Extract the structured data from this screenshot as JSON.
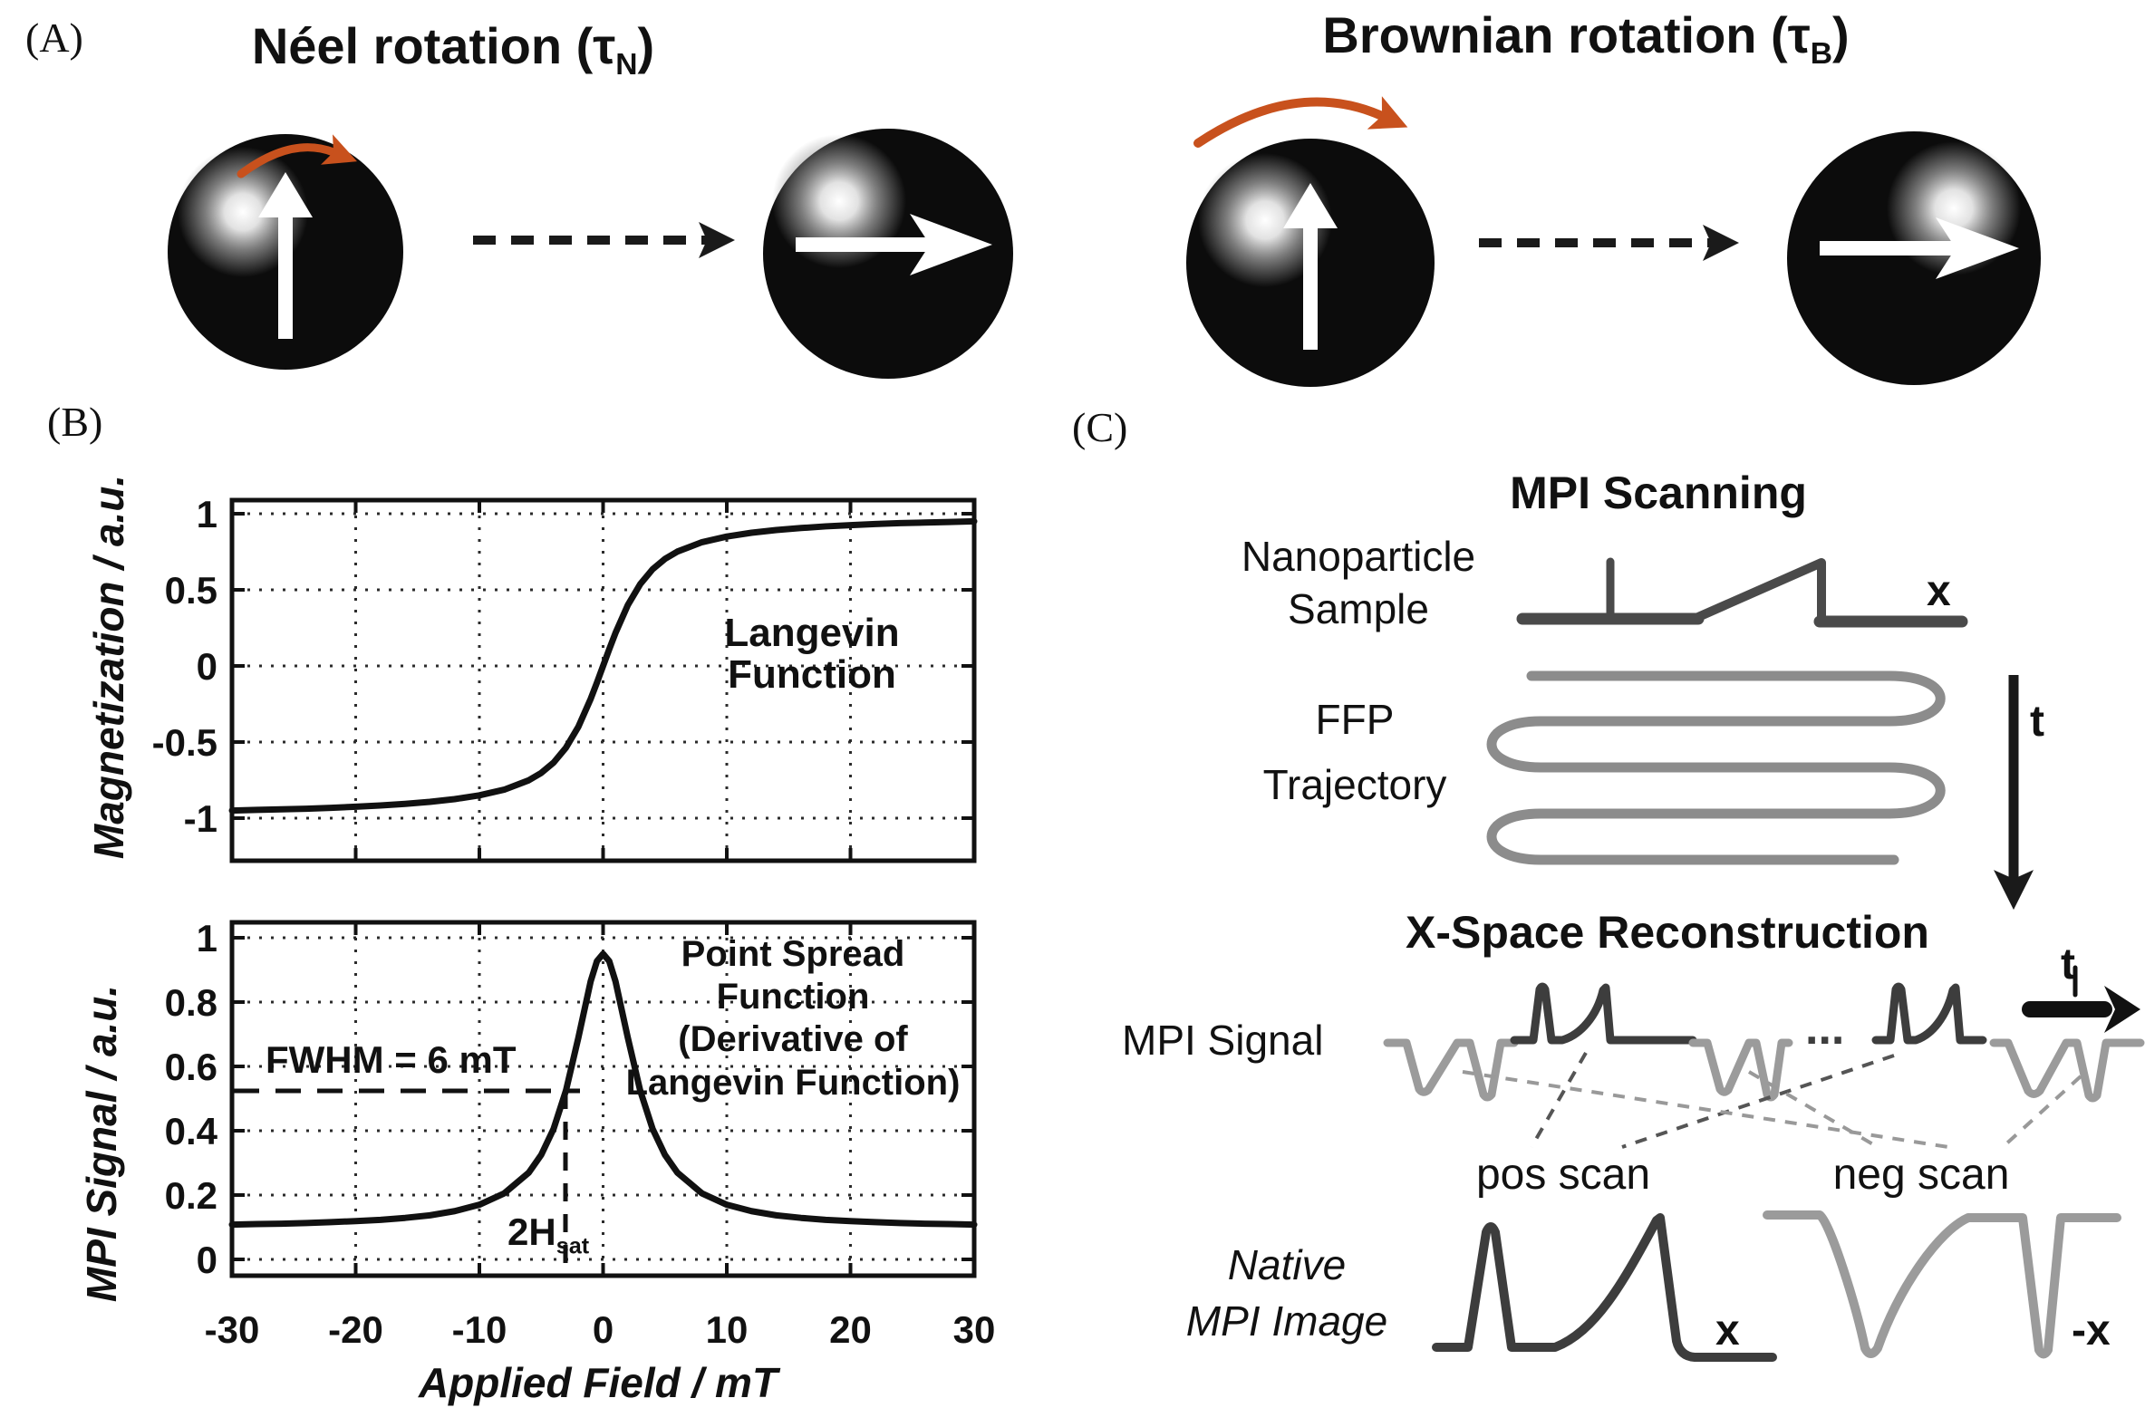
{
  "panel_a": {
    "label": "(A)",
    "neel": {
      "title_prefix": "Néel rotation (τ",
      "title_sub": "N",
      "title_suffix": ")"
    },
    "brownian": {
      "title_prefix": "Brownian rotation (τ",
      "title_sub": "B",
      "title_suffix": ")"
    }
  },
  "panel_b": {
    "label": "(B)",
    "top_plot": {
      "ylabel": "Magnetization / a.u.",
      "annotation_lines": [
        "Langevin",
        "Function"
      ]
    },
    "bottom_plot": {
      "ylabel": "MPI Signal / a.u.",
      "fwhm_text": "FWHM = 6 mT",
      "hsat_prefix": "2H",
      "hsat_sub": "sat",
      "annotation_lines": [
        "Point Spread",
        "Function",
        "(Derivative of",
        "Langevin Function)"
      ]
    },
    "xlabel": "Applied Field / mT"
  },
  "panel_c": {
    "label": "(C)",
    "scanning_title": "MPI Scanning",
    "sample_label_lines": [
      "Nanoparticle",
      "Sample"
    ],
    "sample_axis": "x",
    "ffp_label_lines": [
      "FFP",
      "Trajectory"
    ],
    "time_axis": "t",
    "reconstruction_title": "X-Space Reconstruction",
    "signal_label": "MPI Signal",
    "dots": "...",
    "signal_time_axis": "t",
    "pos_scan": "pos scan",
    "neg_scan": "neg scan",
    "native_label_lines": [
      "Native",
      "MPI Image"
    ],
    "pos_axis": "x",
    "neg_axis": "-x"
  },
  "colors": {
    "accent_orange": "#c8511d",
    "curve_black": "#111111",
    "waveform_dark_gray": "#3d3d3d",
    "waveform_light_gray": "#9b9b9b",
    "trajectory_gray": "#8c8c8c",
    "profile_gray": "#4a4a4a"
  },
  "chart_data": [
    {
      "type": "line",
      "title": "",
      "ylabel": "Magnetization / a.u.",
      "xlabel": "Applied Field / mT",
      "series_name": "Langevin Function",
      "xlim": [
        -30,
        30
      ],
      "ylim": [
        -1.18,
        1.18
      ],
      "xticks": [
        -30,
        -20,
        -10,
        0,
        10,
        20,
        30
      ],
      "yticks": [
        1,
        0.5,
        0,
        -0.5,
        -1
      ],
      "grid": "dotted",
      "x": [
        -30,
        -28,
        -26,
        -24,
        -22,
        -20,
        -18,
        -16,
        -14,
        -12,
        -10,
        -8,
        -6,
        -5,
        -4,
        -3,
        -2,
        -1,
        -0.5,
        0,
        0.5,
        1,
        2,
        3,
        4,
        5,
        6,
        8,
        10,
        12,
        14,
        16,
        18,
        20,
        22,
        24,
        26,
        28,
        30
      ],
      "y": [
        -0.95,
        -0.946,
        -0.942,
        -0.938,
        -0.932,
        -0.925,
        -0.917,
        -0.906,
        -0.893,
        -0.875,
        -0.85,
        -0.813,
        -0.751,
        -0.703,
        -0.635,
        -0.537,
        -0.4,
        -0.216,
        -0.11,
        0,
        0.11,
        0.216,
        0.4,
        0.537,
        0.635,
        0.703,
        0.751,
        0.813,
        0.85,
        0.875,
        0.893,
        0.906,
        0.917,
        0.925,
        0.932,
        0.938,
        0.942,
        0.946,
        0.95
      ]
    },
    {
      "type": "line",
      "title": "",
      "ylabel": "MPI Signal / a.u.",
      "xlabel": "Applied Field / mT",
      "series_name": "Point Spread Function (Derivative of Langevin Function)",
      "fwhm_mT": 6,
      "xlim": [
        -30,
        30
      ],
      "ylim": [
        -0.05,
        1.05
      ],
      "xticks": [
        -30,
        -20,
        -10,
        0,
        10,
        20,
        30
      ],
      "yticks": [
        1,
        0.8,
        0.6,
        0.4,
        0.2,
        0
      ],
      "grid": "dotted",
      "x": [
        -30,
        -28,
        -26,
        -24,
        -22,
        -20,
        -18,
        -16,
        -14,
        -12,
        -10,
        -8,
        -6,
        -5,
        -4,
        -3,
        -2,
        -1,
        -0.5,
        0,
        0.5,
        1,
        2,
        3,
        4,
        5,
        6,
        8,
        10,
        12,
        14,
        16,
        18,
        20,
        22,
        24,
        26,
        28,
        30
      ],
      "y": [
        0.108,
        0.11,
        0.111,
        0.113,
        0.116,
        0.119,
        0.123,
        0.129,
        0.137,
        0.15,
        0.17,
        0.205,
        0.27,
        0.325,
        0.406,
        0.525,
        0.689,
        0.865,
        0.927,
        0.95,
        0.927,
        0.865,
        0.689,
        0.525,
        0.406,
        0.325,
        0.27,
        0.205,
        0.17,
        0.15,
        0.137,
        0.129,
        0.123,
        0.119,
        0.116,
        0.113,
        0.111,
        0.11,
        0.108
      ]
    }
  ]
}
